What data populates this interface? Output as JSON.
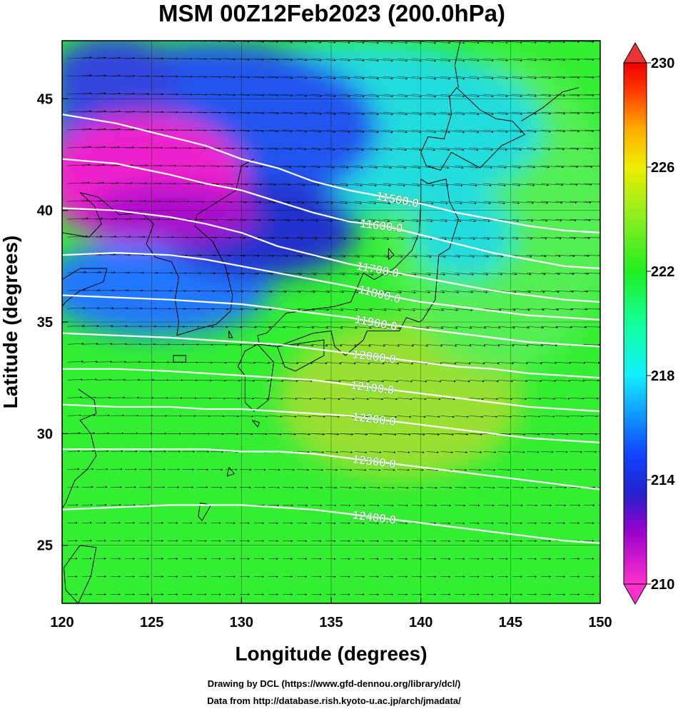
{
  "title": "MSM 00Z12Feb2023 (200.0hPa)",
  "xlabel": "Longitude (degrees)",
  "ylabel": "Latitude  (degrees)",
  "credits": [
    "Drawing by DCL (https://www.gfd-dennou.org/library/dcl/)",
    "Data from http://database.rish.kyoto-u.ac.jp/arch/jmadata/"
  ],
  "chart_data": {
    "type": "heatmap",
    "xlim": [
      120,
      150
    ],
    "ylim": [
      22.4,
      47.6
    ],
    "xticks": [
      120,
      125,
      130,
      135,
      140,
      145,
      150
    ],
    "yticks": [
      25,
      30,
      35,
      40,
      45
    ],
    "colorbar": {
      "min": 210,
      "max": 230,
      "ticks": [
        210,
        214,
        218,
        222,
        226,
        230
      ],
      "stops": [
        {
          "v": 210,
          "c": "#ff33cc"
        },
        {
          "v": 212,
          "c": "#9900cc"
        },
        {
          "v": 213.5,
          "c": "#2222cc"
        },
        {
          "v": 215,
          "c": "#1144ff"
        },
        {
          "v": 216.5,
          "c": "#1199ff"
        },
        {
          "v": 218,
          "c": "#11eeff"
        },
        {
          "v": 220,
          "c": "#11ff99"
        },
        {
          "v": 222,
          "c": "#22ee22"
        },
        {
          "v": 224,
          "c": "#88ee22"
        },
        {
          "v": 226,
          "c": "#eeee00"
        },
        {
          "v": 227.5,
          "c": "#ffaa00"
        },
        {
          "v": 229,
          "c": "#ff3300"
        },
        {
          "v": 230,
          "c": "#ee0000"
        }
      ]
    },
    "contours": [
      {
        "label": "11500.0",
        "label_lon": 138.7,
        "points": [
          [
            120,
            44.3
          ],
          [
            123,
            43.9
          ],
          [
            126,
            43.3
          ],
          [
            128,
            42.9
          ],
          [
            130,
            42.3
          ],
          [
            132,
            41.9
          ],
          [
            134,
            41.3
          ],
          [
            136,
            40.9
          ],
          [
            138,
            40.6
          ],
          [
            140,
            40.3
          ],
          [
            142,
            39.9
          ],
          [
            144,
            39.6
          ],
          [
            146,
            39.3
          ],
          [
            148,
            39.1
          ],
          [
            150,
            39.0
          ]
        ]
      },
      {
        "label": "11600.0",
        "label_lon": 137.8,
        "points": [
          [
            120,
            42.3
          ],
          [
            123,
            42.1
          ],
          [
            126,
            41.6
          ],
          [
            128,
            41.2
          ],
          [
            130,
            40.9
          ],
          [
            132,
            40.4
          ],
          [
            134,
            39.9
          ],
          [
            136,
            39.5
          ],
          [
            138,
            39.3
          ],
          [
            140,
            38.9
          ],
          [
            142,
            38.5
          ],
          [
            144,
            38.1
          ],
          [
            146,
            37.8
          ],
          [
            148,
            37.5
          ],
          [
            150,
            37.4
          ]
        ]
      },
      {
        "label": "11700.0",
        "label_lon": 137.6,
        "points": [
          [
            120,
            40.1
          ],
          [
            123,
            40.0
          ],
          [
            126,
            39.7
          ],
          [
            128,
            39.4
          ],
          [
            130,
            39.0
          ],
          [
            132,
            38.4
          ],
          [
            134,
            38.0
          ],
          [
            136,
            37.6
          ],
          [
            138,
            37.3
          ],
          [
            140,
            37.0
          ],
          [
            142,
            36.7
          ],
          [
            144,
            36.4
          ],
          [
            146,
            36.2
          ],
          [
            148,
            36.0
          ],
          [
            150,
            35.9
          ]
        ]
      },
      {
        "label": "11800.0",
        "label_lon": 137.7,
        "points": [
          [
            120,
            38.0
          ],
          [
            123,
            38.1
          ],
          [
            126,
            38.0
          ],
          [
            128,
            37.8
          ],
          [
            130,
            37.5
          ],
          [
            132,
            37.2
          ],
          [
            134,
            36.9
          ],
          [
            136,
            36.6
          ],
          [
            138,
            36.2
          ],
          [
            140,
            35.9
          ],
          [
            142,
            35.7
          ],
          [
            144,
            35.5
          ],
          [
            146,
            35.3
          ],
          [
            148,
            35.2
          ],
          [
            150,
            35.1
          ]
        ]
      },
      {
        "label": "11900.0",
        "label_lon": 137.5,
        "points": [
          [
            120,
            36.2
          ],
          [
            123,
            36.1
          ],
          [
            126,
            36.0
          ],
          [
            128,
            35.9
          ],
          [
            130,
            35.8
          ],
          [
            132,
            35.6
          ],
          [
            134,
            35.4
          ],
          [
            136,
            35.2
          ],
          [
            138,
            34.9
          ],
          [
            140,
            34.7
          ],
          [
            142,
            34.5
          ],
          [
            144,
            34.3
          ],
          [
            146,
            34.1
          ],
          [
            148,
            34.0
          ],
          [
            150,
            33.9
          ]
        ]
      },
      {
        "label": "12000.0",
        "label_lon": 137.4,
        "points": [
          [
            120,
            34.5
          ],
          [
            123,
            34.4
          ],
          [
            126,
            34.3
          ],
          [
            128,
            34.2
          ],
          [
            130,
            34.1
          ],
          [
            132,
            34.0
          ],
          [
            134,
            33.8
          ],
          [
            136,
            33.6
          ],
          [
            138,
            33.4
          ],
          [
            140,
            33.2
          ],
          [
            142,
            33.0
          ],
          [
            144,
            32.9
          ],
          [
            146,
            32.7
          ],
          [
            148,
            32.6
          ],
          [
            150,
            32.5
          ]
        ]
      },
      {
        "label": "12100.0",
        "label_lon": 137.3,
        "points": [
          [
            120,
            32.9
          ],
          [
            123,
            32.9
          ],
          [
            126,
            32.8
          ],
          [
            128,
            32.7
          ],
          [
            130,
            32.6
          ],
          [
            132,
            32.5
          ],
          [
            134,
            32.4
          ],
          [
            136,
            32.2
          ],
          [
            138,
            32.0
          ],
          [
            140,
            31.8
          ],
          [
            142,
            31.6
          ],
          [
            144,
            31.4
          ],
          [
            146,
            31.2
          ],
          [
            148,
            31.1
          ],
          [
            150,
            31.0
          ]
        ]
      },
      {
        "label": "12200.0",
        "label_lon": 137.4,
        "points": [
          [
            120,
            31.3
          ],
          [
            123,
            31.2
          ],
          [
            126,
            31.2
          ],
          [
            128,
            31.1
          ],
          [
            130,
            31.1
          ],
          [
            132,
            31.0
          ],
          [
            134,
            30.9
          ],
          [
            136,
            30.8
          ],
          [
            138,
            30.6
          ],
          [
            140,
            30.4
          ],
          [
            142,
            30.2
          ],
          [
            144,
            30.0
          ],
          [
            146,
            29.8
          ],
          [
            148,
            29.7
          ],
          [
            150,
            29.6
          ]
        ]
      },
      {
        "label": "12300.0",
        "label_lon": 137.4,
        "points": [
          [
            120,
            29.3
          ],
          [
            123,
            29.3
          ],
          [
            126,
            29.3
          ],
          [
            128,
            29.3
          ],
          [
            130,
            29.2
          ],
          [
            132,
            29.2
          ],
          [
            134,
            29.1
          ],
          [
            136,
            28.9
          ],
          [
            138,
            28.7
          ],
          [
            140,
            28.5
          ],
          [
            142,
            28.3
          ],
          [
            144,
            28.1
          ],
          [
            146,
            27.9
          ],
          [
            148,
            27.7
          ],
          [
            150,
            27.5
          ]
        ]
      },
      {
        "label": "12400.0",
        "label_lon": 137.4,
        "points": [
          [
            120,
            26.6
          ],
          [
            123,
            26.7
          ],
          [
            126,
            26.8
          ],
          [
            128,
            26.8
          ],
          [
            130,
            26.8
          ],
          [
            132,
            26.7
          ],
          [
            134,
            26.6
          ],
          [
            136,
            26.4
          ],
          [
            138,
            26.2
          ],
          [
            140,
            26.0
          ],
          [
            142,
            25.8
          ],
          [
            144,
            25.6
          ],
          [
            146,
            25.4
          ],
          [
            148,
            25.2
          ],
          [
            150,
            25.1
          ]
        ]
      }
    ]
  }
}
